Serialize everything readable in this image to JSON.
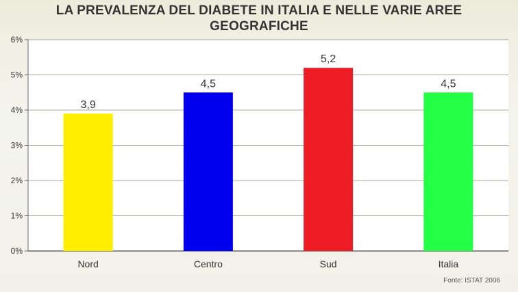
{
  "title_line1": "LA PREVALENZA DEL DIABETE IN ITALIA E NELLE VARIE AREE",
  "title_line2": "GEOGRAFICHE",
  "source": "Fonte: ISTAT 2006",
  "chart_data": {
    "type": "bar",
    "categories": [
      "Nord",
      "Centro",
      "Sud",
      "Italia"
    ],
    "values": [
      3.9,
      4.5,
      5.2,
      4.5
    ],
    "value_labels": [
      "3,9",
      "4,5",
      "5,2",
      "4,5"
    ],
    "bar_colors": [
      "#ffee00",
      "#0000ee",
      "#ee1c24",
      "#22ff44"
    ],
    "ylim": [
      0,
      6
    ],
    "yticks": [
      0,
      1,
      2,
      3,
      4,
      5,
      6
    ],
    "ytick_labels": [
      "0%",
      "1%",
      "2%",
      "3%",
      "4%",
      "5%",
      "6%"
    ],
    "grid": true,
    "legend": "none",
    "xlabel": "",
    "ylabel": ""
  }
}
